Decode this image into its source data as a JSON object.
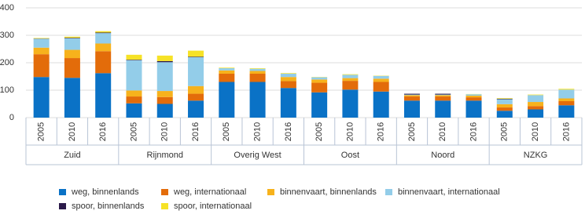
{
  "chart_data": {
    "type": "stacked-bar",
    "categories": [
      "2005",
      "2010",
      "2016",
      "2005",
      "2010",
      "2016",
      "2005",
      "2010",
      "2016",
      "2005",
      "2010",
      "2016",
      "2005",
      "2010",
      "2016",
      "2005",
      "2010",
      "2016"
    ],
    "groups": [
      "Zuid",
      "Rijnmond",
      "Overig West",
      "Oost",
      "Noord",
      "NZKG"
    ],
    "ylim": [
      0,
      400
    ],
    "yticks": [
      0,
      100,
      200,
      300,
      400
    ],
    "grid": true,
    "series": [
      {
        "name": "weg, binnenlands",
        "color": "#0a72c6",
        "values": [
          148,
          145,
          162,
          52,
          50,
          62,
          130,
          130,
          108,
          92,
          102,
          95,
          62,
          62,
          62,
          25,
          30,
          45
        ]
      },
      {
        "name": "weg, internationaal",
        "color": "#e36c0a",
        "values": [
          83,
          72,
          80,
          25,
          25,
          25,
          30,
          30,
          25,
          35,
          32,
          35,
          15,
          15,
          12,
          12,
          12,
          15
        ]
      },
      {
        "name": "binnenvaart, binnenlands",
        "color": "#f7b21c",
        "values": [
          24,
          30,
          28,
          22,
          22,
          28,
          12,
          10,
          15,
          12,
          10,
          12,
          5,
          5,
          6,
          12,
          15,
          10
        ]
      },
      {
        "name": "binnenvaart, internationaal",
        "color": "#93cde9",
        "values": [
          32,
          42,
          38,
          110,
          105,
          105,
          8,
          8,
          12,
          8,
          12,
          10,
          2,
          2,
          5,
          18,
          25,
          32
        ]
      },
      {
        "name": "spoor, binnenlands",
        "color": "#2b1a4a",
        "values": [
          1,
          2,
          2,
          2,
          4,
          2,
          0,
          0,
          0,
          0,
          0,
          0,
          3,
          3,
          0,
          2,
          0,
          0
        ]
      },
      {
        "name": "spoor, internationaal",
        "color": "#f6e227",
        "values": [
          2,
          4,
          5,
          18,
          20,
          22,
          2,
          2,
          2,
          1,
          2,
          1,
          0,
          0,
          1,
          2,
          2,
          3
        ]
      }
    ]
  }
}
